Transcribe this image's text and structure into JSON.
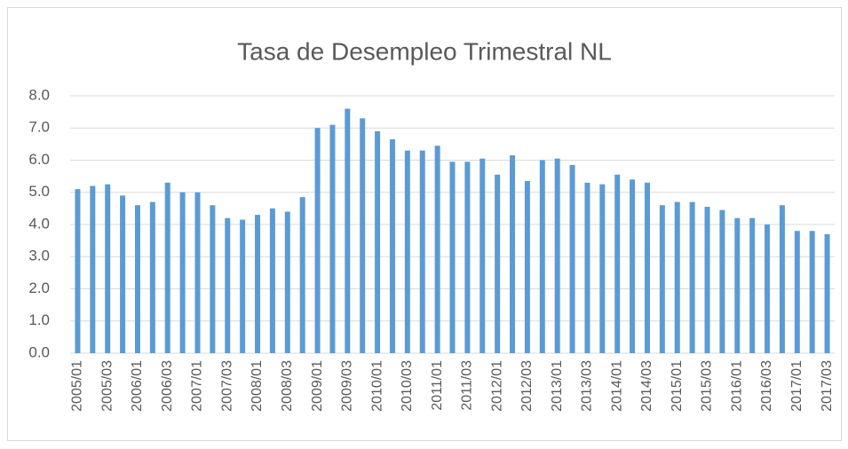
{
  "chart_data": {
    "type": "bar",
    "title": "Tasa de Desempleo Trimestral NL",
    "categories": [
      "2005/01",
      null,
      "2005/03",
      null,
      "2006/01",
      null,
      "2006/03",
      null,
      "2007/01",
      null,
      "2007/03",
      null,
      "2008/01",
      null,
      "2008/03",
      null,
      "2009/01",
      null,
      "2009/03",
      null,
      "2010/01",
      null,
      "2010/03",
      null,
      "2011/01",
      null,
      "2011/03",
      null,
      "2012/01",
      null,
      "2012/03",
      null,
      "2013/01",
      null,
      "2013/03",
      null,
      "2014/01",
      null,
      "2014/03",
      null,
      "2015/01",
      null,
      "2015/03",
      null,
      "2016/01",
      null,
      "2016/03",
      null,
      "2017/01",
      null,
      "2017/03"
    ],
    "values": [
      5.1,
      5.2,
      5.25,
      4.9,
      4.6,
      4.7,
      5.3,
      5.0,
      5.0,
      4.6,
      4.2,
      4.15,
      4.3,
      4.5,
      4.4,
      4.85,
      7.0,
      7.1,
      7.6,
      7.3,
      6.9,
      6.65,
      6.3,
      6.3,
      6.45,
      5.95,
      5.95,
      6.05,
      5.55,
      6.15,
      5.35,
      6.0,
      6.05,
      5.85,
      5.3,
      5.25,
      5.55,
      5.4,
      5.3,
      4.6,
      4.7,
      4.7,
      4.55,
      4.45,
      4.2,
      4.2,
      4.0,
      4.6,
      3.8,
      3.8,
      3.7
    ],
    "color": "#5b9bd5",
    "ylim": [
      0,
      8
    ],
    "yticks": [
      {
        "value": 0,
        "label": "0.0"
      },
      {
        "value": 1,
        "label": "1.0"
      },
      {
        "value": 2,
        "label": "2.0"
      },
      {
        "value": 3,
        "label": "3.0"
      },
      {
        "value": 4,
        "label": "4.0"
      },
      {
        "value": 5,
        "label": "5.0"
      },
      {
        "value": 6,
        "label": "6.0"
      },
      {
        "value": 7,
        "label": "7.0"
      },
      {
        "value": 8,
        "label": "8.0"
      }
    ],
    "grid": true
  }
}
